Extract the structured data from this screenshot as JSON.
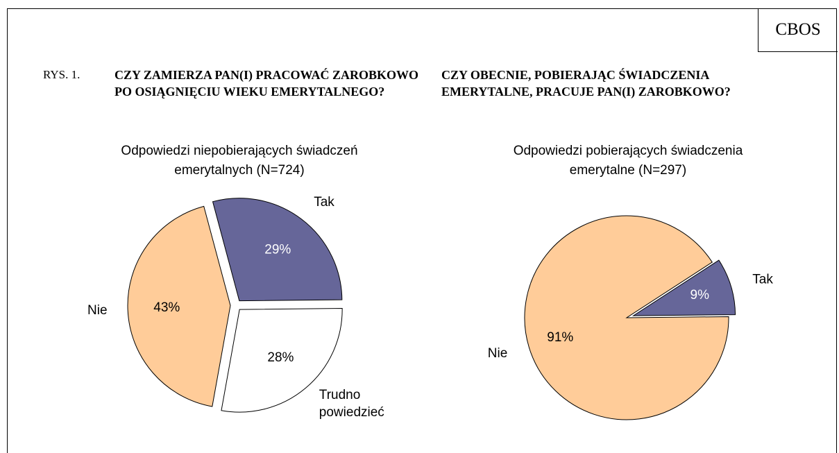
{
  "corner_label": "CBOS",
  "figure_label": "RYS. 1.",
  "chart_data": [
    {
      "type": "pie",
      "title": "CZY ZAMIERZA PAN(I) PRACOWAĆ ZAROBKOWO PO OSIĄGNIĘCIU WIEKU EMERYTALNEGO?",
      "subtitle": "Odpowiedzi niepobierających świadczeń emerytalnych (N=724)",
      "categories": [
        "Tak",
        "Trudno powiedzieć",
        "Nie"
      ],
      "values": [
        29,
        28,
        43
      ],
      "value_labels": [
        "29%",
        "28%",
        "43%"
      ],
      "colors": [
        "#666699",
        "#ffffff",
        "#ffcc99"
      ]
    },
    {
      "type": "pie",
      "title": "CZY OBECNIE, POBIERAJĄC ŚWIADCZENIA EMERYTALNE, PRACUJE PAN(I) ZAROBKOWO?",
      "subtitle": "Odpowiedzi pobierających świadczenia emerytalne (N=297)",
      "categories": [
        "Tak",
        "Nie"
      ],
      "values": [
        9,
        91
      ],
      "value_labels": [
        "9%",
        "91%"
      ],
      "colors": [
        "#666699",
        "#ffcc99"
      ]
    }
  ]
}
